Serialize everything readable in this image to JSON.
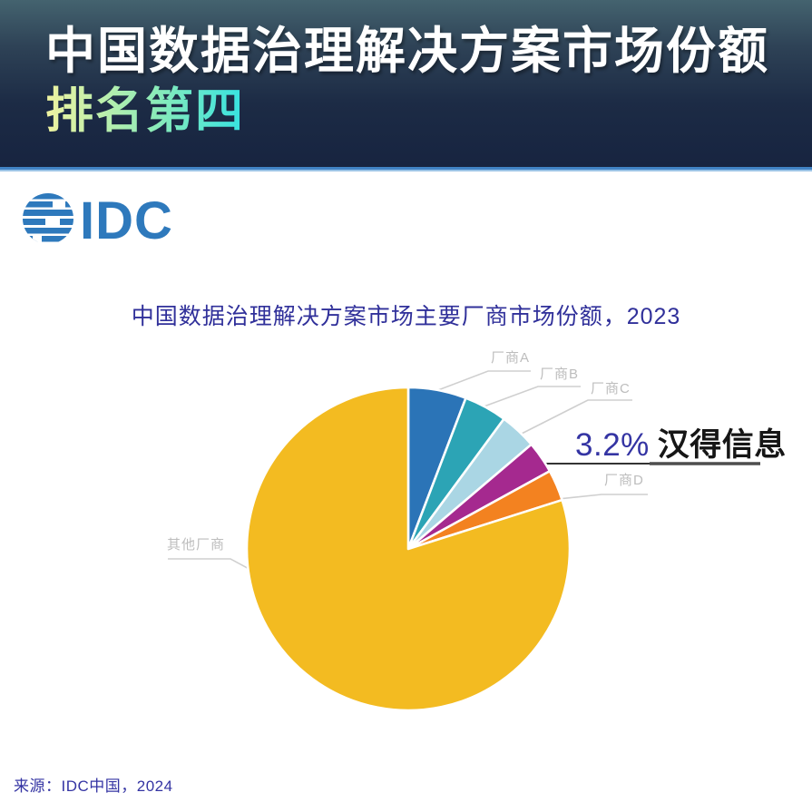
{
  "header": {
    "title_line1": "中国数据治理解决方案市场份额",
    "title_line2": "排名第四",
    "accent_gradient": [
      "#F0F3A0",
      "#8BEBB8",
      "#35E2E2"
    ],
    "background_top": "#44636F",
    "background_bottom": "#172440",
    "divider_color": "#4183C4"
  },
  "logo": {
    "text": "IDC",
    "color": "#2E79BC",
    "icon": "striped-globe-icon"
  },
  "chart": {
    "title": "中国数据治理解决方案市场主要厂商市场份额，2023",
    "title_color": "#30309A"
  },
  "chart_data": {
    "type": "pie",
    "title": "中国数据治理解决方案市场主要厂商市场份额，2023",
    "units": "percent market share",
    "start_angle_deg": 0,
    "direction": "clockwise",
    "legend_position": "callout-labels",
    "center": [
      450,
      605
    ],
    "radius": 178,
    "slices": [
      {
        "label": "厂商A",
        "value": 5.8,
        "color": "#2B74B7"
      },
      {
        "label": "厂商B",
        "value": 4.3,
        "color": "#2CA4B5"
      },
      {
        "label": "厂商C",
        "value": 3.7,
        "color": "#AAD6E4"
      },
      {
        "label": "汉得信息",
        "value": 3.2,
        "color": "#A5298F",
        "highlight": true,
        "data_label": "3.2%"
      },
      {
        "label": "厂商D",
        "value": 3.1,
        "color": "#F38220"
      },
      {
        "label": "其他厂商",
        "value": 79.9,
        "color": "#F3BB21"
      }
    ]
  },
  "callout": {
    "percent": "3.2%",
    "name": "汉得信息",
    "percent_color": "#3434A3"
  },
  "footer": {
    "source": "来源：IDC中国，2024"
  }
}
